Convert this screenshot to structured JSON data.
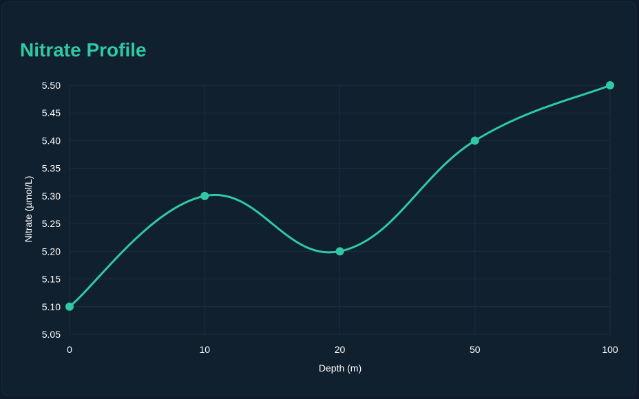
{
  "chart_data": {
    "type": "line",
    "title": "Nitrate Profile",
    "xlabel": "Depth (m)",
    "ylabel": "Nitrate (µmol/L)",
    "categories": [
      "0",
      "10",
      "20",
      "50",
      "100"
    ],
    "series": [
      {
        "values": [
          5.1,
          5.3,
          5.2,
          5.4,
          5.5
        ]
      }
    ],
    "yticks": [
      "5.05",
      "5.10",
      "5.15",
      "5.20",
      "5.25",
      "5.30",
      "5.35",
      "5.40",
      "5.45",
      "5.50"
    ],
    "ylim": [
      5.05,
      5.5
    ],
    "grid": true,
    "legend": "none",
    "colors": {
      "line": "#2fc9a4",
      "title": "#2fc9a4",
      "grid": "#1b2e40",
      "background": "#10202f"
    }
  }
}
